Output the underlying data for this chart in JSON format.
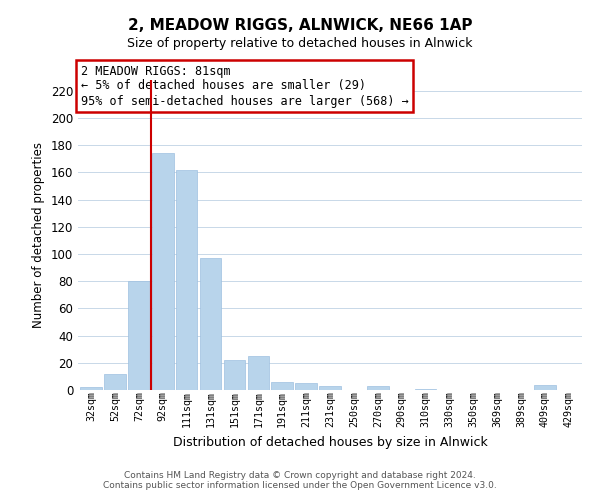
{
  "title": "2, MEADOW RIGGS, ALNWICK, NE66 1AP",
  "subtitle": "Size of property relative to detached houses in Alnwick",
  "xlabel": "Distribution of detached houses by size in Alnwick",
  "ylabel": "Number of detached properties",
  "categories": [
    "32sqm",
    "52sqm",
    "72sqm",
    "92sqm",
    "111sqm",
    "131sqm",
    "151sqm",
    "171sqm",
    "191sqm",
    "211sqm",
    "231sqm",
    "250sqm",
    "270sqm",
    "290sqm",
    "310sqm",
    "330sqm",
    "350sqm",
    "369sqm",
    "389sqm",
    "409sqm",
    "429sqm"
  ],
  "values": [
    2,
    12,
    80,
    174,
    162,
    97,
    22,
    25,
    6,
    5,
    3,
    0,
    3,
    0,
    1,
    0,
    0,
    0,
    0,
    4,
    0
  ],
  "bar_color": "#b8d4eb",
  "bar_edge_color": "#9ec0e0",
  "highlight_line_color": "#cc0000",
  "ylim": [
    0,
    228
  ],
  "yticks": [
    0,
    20,
    40,
    60,
    80,
    100,
    120,
    140,
    160,
    180,
    200,
    220
  ],
  "annotation_title": "2 MEADOW RIGGS: 81sqm",
  "annotation_line1": "← 5% of detached houses are smaller (29)",
  "annotation_line2": "95% of semi-detached houses are larger (568) →",
  "annotation_box_color": "#ffffff",
  "annotation_box_edge_color": "#cc0000",
  "footer_line1": "Contains HM Land Registry data © Crown copyright and database right 2024.",
  "footer_line2": "Contains public sector information licensed under the Open Government Licence v3.0.",
  "background_color": "#ffffff",
  "grid_color": "#c8d8e8"
}
